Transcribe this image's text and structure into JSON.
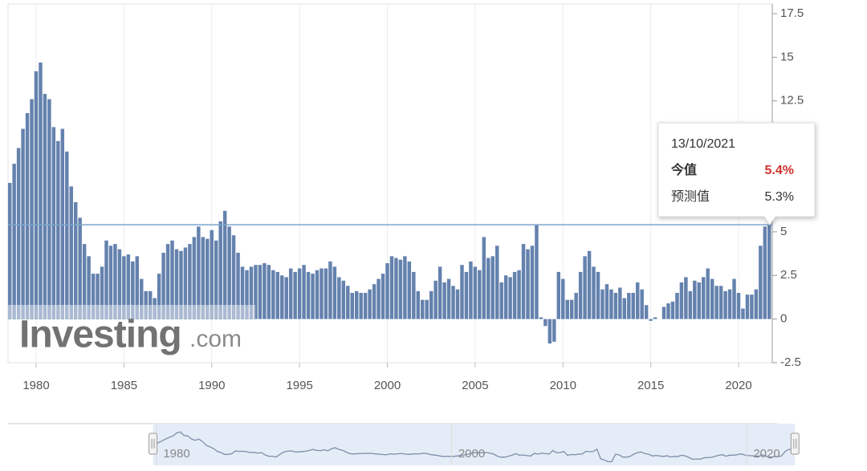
{
  "chart_data": {
    "type": "bar",
    "color": "#6582ae",
    "x": [
      1978.5,
      1978.75,
      1979,
      1979.25,
      1979.5,
      1979.75,
      1980,
      1980.25,
      1980.5,
      1980.75,
      1981,
      1981.25,
      1981.5,
      1981.75,
      1982,
      1982.25,
      1982.5,
      1982.75,
      1983,
      1983.25,
      1983.5,
      1983.75,
      1984,
      1984.25,
      1984.5,
      1984.75,
      1985,
      1985.25,
      1985.5,
      1985.75,
      1986,
      1986.25,
      1986.5,
      1986.75,
      1987,
      1987.25,
      1987.5,
      1987.75,
      1988,
      1988.25,
      1988.5,
      1988.75,
      1989,
      1989.25,
      1989.5,
      1989.75,
      1990,
      1990.25,
      1990.5,
      1990.75,
      1991,
      1991.25,
      1991.5,
      1991.75,
      1992,
      1992.25,
      1992.5,
      1992.75,
      1993,
      1993.25,
      1993.5,
      1993.75,
      1994,
      1994.25,
      1994.5,
      1994.75,
      1995,
      1995.25,
      1995.5,
      1995.75,
      1996,
      1996.25,
      1996.5,
      1996.75,
      1997,
      1997.25,
      1997.5,
      1997.75,
      1998,
      1998.25,
      1998.5,
      1998.75,
      1999,
      1999.25,
      1999.5,
      1999.75,
      2000,
      2000.25,
      2000.5,
      2000.75,
      2001,
      2001.25,
      2001.5,
      2001.75,
      2002,
      2002.25,
      2002.5,
      2002.75,
      2003,
      2003.25,
      2003.5,
      2003.75,
      2004,
      2004.25,
      2004.5,
      2004.75,
      2005,
      2005.25,
      2005.5,
      2005.75,
      2006,
      2006.25,
      2006.5,
      2006.75,
      2007,
      2007.25,
      2007.5,
      2007.75,
      2008,
      2008.25,
      2008.5,
      2008.75,
      2009,
      2009.25,
      2009.5,
      2009.75,
      2010,
      2010.25,
      2010.5,
      2010.75,
      2011,
      2011.25,
      2011.5,
      2011.75,
      2012,
      2012.25,
      2012.5,
      2012.75,
      2013,
      2013.25,
      2013.5,
      2013.75,
      2014,
      2014.25,
      2014.5,
      2014.75,
      2015,
      2015.25,
      2015.5,
      2015.75,
      2016,
      2016.25,
      2016.5,
      2016.75,
      2017,
      2017.25,
      2017.5,
      2017.75,
      2018,
      2018.25,
      2018.5,
      2018.75,
      2019,
      2019.25,
      2019.5,
      2019.75,
      2020,
      2020.25,
      2020.5,
      2020.75,
      2021,
      2021.25,
      2021.5,
      2021.75
    ],
    "values": [
      7.8,
      8.9,
      9.8,
      10.9,
      11.8,
      12.6,
      14.2,
      14.7,
      12.9,
      12.6,
      11.0,
      10.2,
      10.9,
      9.6,
      7.6,
      6.7,
      5.8,
      4.3,
      3.6,
      2.6,
      2.6,
      3.0,
      4.5,
      4.2,
      4.3,
      4.0,
      3.6,
      3.7,
      3.3,
      3.6,
      2.3,
      1.6,
      1.6,
      1.2,
      2.6,
      3.8,
      4.3,
      4.5,
      4.0,
      3.9,
      4.1,
      4.3,
      4.7,
      5.3,
      4.7,
      4.6,
      5.1,
      4.5,
      5.6,
      6.2,
      5.3,
      4.8,
      3.8,
      3.0,
      2.8,
      3.0,
      3.1,
      3.1,
      3.2,
      3.1,
      2.8,
      2.7,
      2.5,
      2.4,
      2.9,
      2.7,
      2.9,
      3.1,
      2.7,
      2.6,
      2.8,
      2.9,
      2.9,
      3.3,
      3.0,
      2.4,
      2.2,
      1.9,
      1.5,
      1.6,
      1.5,
      1.5,
      1.7,
      2.0,
      2.3,
      2.6,
      3.2,
      3.6,
      3.5,
      3.4,
      3.6,
      3.3,
      2.7,
      1.6,
      1.1,
      1.1,
      1.6,
      2.2,
      3.0,
      2.1,
      2.3,
      1.9,
      1.7,
      3.1,
      2.7,
      3.3,
      3.0,
      2.8,
      4.7,
      3.5,
      3.6,
      4.2,
      2.1,
      2.5,
      2.4,
      2.7,
      2.8,
      4.3,
      4.0,
      4.2,
      5.4,
      0.1,
      -0.4,
      -1.4,
      -1.3,
      2.7,
      2.3,
      1.1,
      1.1,
      1.5,
      2.7,
      3.6,
      3.9,
      3.0,
      2.7,
      1.7,
      2.0,
      1.7,
      1.5,
      1.8,
      1.2,
      1.5,
      1.5,
      2.1,
      1.7,
      0.8,
      -0.1,
      0.1,
      0.0,
      0.7,
      0.9,
      1.0,
      1.5,
      2.1,
      2.4,
      1.6,
      2.2,
      2.1,
      2.4,
      2.9,
      2.3,
      1.9,
      1.9,
      1.6,
      1.7,
      2.3,
      1.5,
      0.6,
      1.4,
      1.4,
      1.7,
      4.2,
      5.3,
      5.4
    ],
    "xlim": [
      1978.4,
      2021.92
    ],
    "xticks": [
      1980,
      1985,
      1990,
      1995,
      2000,
      2005,
      2010,
      2015,
      2020
    ],
    "ylim": [
      -2.5,
      17.5
    ],
    "yticks": [
      -2.5,
      0,
      2.5,
      5,
      7.5,
      10,
      12.5,
      15,
      17.5
    ],
    "grid": true,
    "navigator_ticks": [
      1980,
      2000,
      2020
    ],
    "tooltip": {
      "date": "13/10/2021",
      "actual_label": "今值",
      "actual": "5.4%",
      "forecast_label": "预测值",
      "forecast": "5.3%"
    },
    "watermark": {
      "brand": "Investing",
      "suffix": ".com"
    }
  }
}
